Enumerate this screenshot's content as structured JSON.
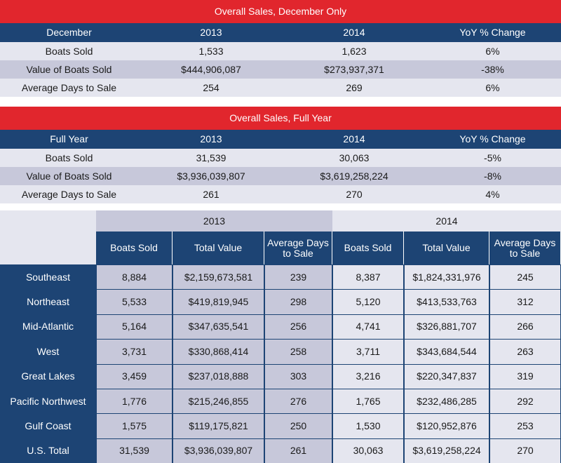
{
  "tables": [
    {
      "title": "Overall Sales, December Only",
      "header": [
        "December",
        "2013",
        "2014",
        "YoY % Change"
      ],
      "rows": [
        [
          "Boats Sold",
          "1,533",
          "1,623",
          "6%"
        ],
        [
          "Value of Boats Sold",
          "$444,906,087",
          "$273,937,371",
          "-38%"
        ],
        [
          "Average Days to Sale",
          "254",
          "269",
          "6%"
        ]
      ]
    },
    {
      "title": "Overall Sales, Full Year",
      "header": [
        "Full Year",
        "2013",
        "2014",
        "YoY % Change"
      ],
      "rows": [
        [
          "Boats Sold",
          "31,539",
          "30,063",
          "-5%"
        ],
        [
          "Value of Boats Sold",
          "$3,936,039,807",
          "$3,619,258,224",
          "-8%"
        ],
        [
          "Average Days to Sale",
          "261",
          "270",
          "4%"
        ]
      ]
    }
  ],
  "regional": {
    "years": [
      "2013",
      "2014"
    ],
    "header": [
      "Boats Sold",
      "Total Value",
      "Average Days to Sale",
      "Boats Sold",
      "Total Value",
      "Average Days to Sale"
    ],
    "rows": [
      [
        "Southeast",
        "8,884",
        "$2,159,673,581",
        "239",
        "8,387",
        "$1,824,331,976",
        "245"
      ],
      [
        "Northeast",
        "5,533",
        "$419,819,945",
        "298",
        "5,120",
        "$413,533,763",
        "312"
      ],
      [
        "Mid-Atlantic",
        "5,164",
        "$347,635,541",
        "256",
        "4,741",
        "$326,881,707",
        "266"
      ],
      [
        "West",
        "3,731",
        "$330,868,414",
        "258",
        "3,711",
        "$343,684,544",
        "263"
      ],
      [
        "Great Lakes",
        "3,459",
        "$237,018,888",
        "303",
        "3,216",
        "$220,347,837",
        "319"
      ],
      [
        "Pacific Northwest",
        "1,776",
        "$215,246,855",
        "276",
        "1,765",
        "$232,486,285",
        "292"
      ],
      [
        "Gulf Coast",
        "1,575",
        "$119,175,821",
        "250",
        "1,530",
        "$120,952,876",
        "253"
      ],
      [
        "U.S. Total",
        "31,539",
        "$3,936,039,807",
        "261",
        "30,063",
        "$3,619,258,224",
        "270"
      ]
    ]
  }
}
